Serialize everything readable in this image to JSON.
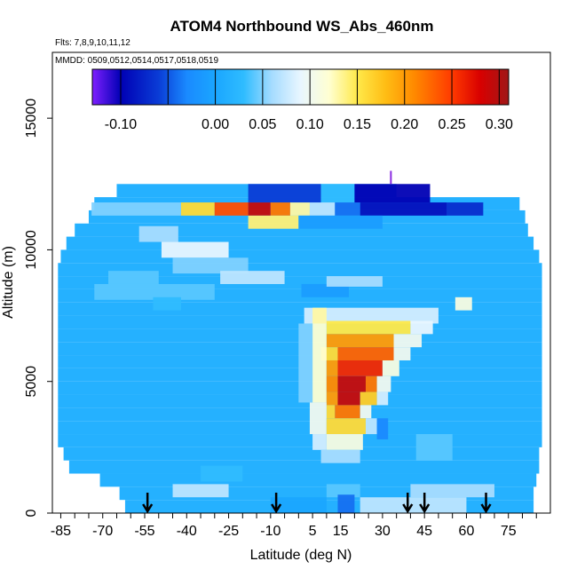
{
  "chart_data": {
    "type": "heatmap",
    "title": "ATOM4 Northbound WS_Abs_460nm",
    "flights_note": "Flts: 7,8,9,10,11,12",
    "dates_note": "MMDD: 0509,0512,0514,0517,0518,0519",
    "xlabel": "Latitude (deg N)",
    "ylabel": "Altitude (m)",
    "xlim": [
      -88,
      90
    ],
    "ylim": [
      0,
      17500
    ],
    "x_ticks": [
      -85,
      -70,
      -55,
      -40,
      -25,
      -10,
      5,
      15,
      30,
      45,
      60,
      75
    ],
    "x_minor_ticks": [
      -80,
      -75,
      -65,
      -60,
      -50,
      -45,
      -35,
      -30,
      -20,
      -15,
      -5,
      0,
      10,
      20,
      25,
      35,
      40,
      50,
      55,
      65,
      70,
      80,
      85
    ],
    "y_ticks": [
      0,
      5000,
      10000,
      15000
    ],
    "colorbar": {
      "range": [
        -0.13,
        0.31
      ],
      "tick_labels": [
        "-0.10",
        "0.00",
        "0.05",
        "0.10",
        "0.15",
        "0.20",
        "0.25",
        "0.30"
      ],
      "tick_values": [
        -0.1,
        0.0,
        0.05,
        0.1,
        0.15,
        0.2,
        0.25,
        0.3
      ],
      "stops": [
        {
          "v": -0.13,
          "c": "#7f1fff"
        },
        {
          "v": -0.1,
          "c": "#0000b4"
        },
        {
          "v": -0.06,
          "c": "#0a3cd6"
        },
        {
          "v": -0.03,
          "c": "#1a8aff"
        },
        {
          "v": 0.0,
          "c": "#1aa6ff"
        },
        {
          "v": 0.03,
          "c": "#2fbcff"
        },
        {
          "v": 0.06,
          "c": "#a6dcff"
        },
        {
          "v": 0.09,
          "c": "#e8f6ff"
        },
        {
          "v": 0.12,
          "c": "#ffffd2"
        },
        {
          "v": 0.15,
          "c": "#ffe94a"
        },
        {
          "v": 0.18,
          "c": "#ffbd14"
        },
        {
          "v": 0.21,
          "c": "#ff8a00"
        },
        {
          "v": 0.25,
          "c": "#ff3a00"
        },
        {
          "v": 0.28,
          "c": "#d80000"
        },
        {
          "v": 0.31,
          "c": "#a01818"
        }
      ]
    },
    "background_value": 0.015,
    "field_rows": [
      {
        "alt": 12000,
        "lat_min": -65,
        "lat_max": 35,
        "v": 0.015
      },
      {
        "alt": 11500,
        "lat_min": -73,
        "lat_max": 79,
        "v": 0.015
      },
      {
        "alt": 11000,
        "lat_min": -75,
        "lat_max": 81,
        "v": 0.015
      },
      {
        "alt": 10500,
        "lat_min": -80,
        "lat_max": 82,
        "v": 0.015
      },
      {
        "alt": 10000,
        "lat_min": -83,
        "lat_max": 84,
        "v": 0.015
      },
      {
        "alt": 9500,
        "lat_min": -85,
        "lat_max": 86,
        "v": 0.015
      },
      {
        "alt": 9000,
        "lat_min": -86,
        "lat_max": 87,
        "v": 0.015
      },
      {
        "alt": 2500,
        "lat_min": -86,
        "lat_max": 87,
        "v": 0.015
      },
      {
        "alt": 2000,
        "lat_min": -84,
        "lat_max": 86,
        "v": 0.015
      },
      {
        "alt": 1500,
        "lat_min": -82,
        "lat_max": 86,
        "v": 0.015
      },
      {
        "alt": 1000,
        "lat_min": -71,
        "lat_max": 85,
        "v": 0.015
      },
      {
        "alt": 500,
        "lat_min": -64,
        "lat_max": 84,
        "v": 0.015
      },
      {
        "alt": 0,
        "lat_min": -62,
        "lat_max": 84,
        "v": 0.015
      }
    ],
    "features": [
      {
        "lat": [
          -74,
          -42
        ],
        "alt": [
          11300,
          11800
        ],
        "v": 0.05
      },
      {
        "lat": [
          -42,
          -30
        ],
        "alt": [
          11300,
          11800
        ],
        "v": 0.16
      },
      {
        "lat": [
          -30,
          -18
        ],
        "alt": [
          11300,
          11800
        ],
        "v": 0.24
      },
      {
        "lat": [
          -18,
          -10
        ],
        "alt": [
          11300,
          11800
        ],
        "v": 0.29
      },
      {
        "lat": [
          -10,
          -3
        ],
        "alt": [
          11300,
          11800
        ],
        "v": 0.22
      },
      {
        "lat": [
          -3,
          4
        ],
        "alt": [
          11300,
          11800
        ],
        "v": 0.13
      },
      {
        "lat": [
          4,
          13
        ],
        "alt": [
          11300,
          11800
        ],
        "v": 0.07
      },
      {
        "lat": [
          13,
          22
        ],
        "alt": [
          11300,
          11800
        ],
        "v": -0.04
      },
      {
        "lat": [
          22,
          53
        ],
        "alt": [
          11300,
          11800
        ],
        "v": -0.09
      },
      {
        "lat": [
          53,
          66
        ],
        "alt": [
          11300,
          11800
        ],
        "v": -0.07
      },
      {
        "lat": [
          -18,
          8
        ],
        "alt": [
          11800,
          12500
        ],
        "v": -0.06
      },
      {
        "lat": [
          8,
          20
        ],
        "alt": [
          11800,
          12500
        ],
        "v": 0.03
      },
      {
        "lat": [
          20,
          47
        ],
        "alt": [
          11800,
          12500
        ],
        "v": -0.1
      },
      {
        "lat": [
          -18,
          0
        ],
        "alt": [
          10800,
          11300
        ],
        "v": 0.14
      },
      {
        "lat": [
          0,
          30
        ],
        "alt": [
          10800,
          11300
        ],
        "v": -0.01
      },
      {
        "lat": [
          -57,
          -43
        ],
        "alt": [
          10300,
          10900
        ],
        "v": 0.06
      },
      {
        "lat": [
          -49,
          -25
        ],
        "alt": [
          9700,
          10300
        ],
        "v": 0.09
      },
      {
        "lat": [
          -45,
          -18
        ],
        "alt": [
          9100,
          9700
        ],
        "v": 0.05
      },
      {
        "lat": [
          -28,
          -5
        ],
        "alt": [
          8700,
          9200
        ],
        "v": 0.07
      },
      {
        "lat": [
          -68,
          -50
        ],
        "alt": [
          8700,
          9200
        ],
        "v": 0.04
      },
      {
        "lat": [
          -73,
          -30
        ],
        "alt": [
          8100,
          8700
        ],
        "v": 0.04
      },
      {
        "lat": [
          -52,
          -42
        ],
        "alt": [
          7700,
          8200
        ],
        "v": 0.03
      },
      {
        "lat": [
          1,
          18
        ],
        "alt": [
          8200,
          8700
        ],
        "v": -0.01
      },
      {
        "lat": [
          10,
          30
        ],
        "alt": [
          8600,
          9000
        ],
        "v": 0.06
      },
      {
        "lat": [
          56,
          62
        ],
        "alt": [
          7700,
          8200
        ],
        "v": 0.11
      },
      {
        "lat": [
          2,
          50
        ],
        "alt": [
          7200,
          7800
        ],
        "v": 0.08
      },
      {
        "lat": [
          5,
          10
        ],
        "alt": [
          7200,
          7800
        ],
        "v": 0.13
      },
      {
        "lat": [
          10,
          40
        ],
        "alt": [
          6800,
          7300
        ],
        "v": 0.15
      },
      {
        "lat": [
          40,
          48
        ],
        "alt": [
          6800,
          7300
        ],
        "v": 0.09
      },
      {
        "lat": [
          10,
          34
        ],
        "alt": [
          6300,
          6800
        ],
        "v": 0.2
      },
      {
        "lat": [
          34,
          44
        ],
        "alt": [
          6300,
          6800
        ],
        "v": 0.1
      },
      {
        "lat": [
          8,
          14
        ],
        "alt": [
          5800,
          6300
        ],
        "v": 0.16
      },
      {
        "lat": [
          14,
          34
        ],
        "alt": [
          5800,
          6300
        ],
        "v": 0.23
      },
      {
        "lat": [
          34,
          40
        ],
        "alt": [
          5800,
          6300
        ],
        "v": 0.1
      },
      {
        "lat": [
          0,
          5
        ],
        "alt": [
          4200,
          7200
        ],
        "v": 0.05
      },
      {
        "lat": [
          5,
          10
        ],
        "alt": [
          4200,
          7200
        ],
        "v": 0.12
      },
      {
        "lat": [
          10,
          14
        ],
        "alt": [
          5200,
          5800
        ],
        "v": 0.2
      },
      {
        "lat": [
          14,
          30
        ],
        "alt": [
          5200,
          5800
        ],
        "v": 0.26
      },
      {
        "lat": [
          30,
          36
        ],
        "alt": [
          5200,
          5800
        ],
        "v": 0.11
      },
      {
        "lat": [
          10,
          14
        ],
        "alt": [
          4600,
          5200
        ],
        "v": 0.21
      },
      {
        "lat": [
          14,
          24
        ],
        "alt": [
          4600,
          5200
        ],
        "v": 0.29
      },
      {
        "lat": [
          24,
          28
        ],
        "alt": [
          4600,
          5200
        ],
        "v": 0.22
      },
      {
        "lat": [
          28,
          33
        ],
        "alt": [
          4600,
          5200
        ],
        "v": 0.1
      },
      {
        "lat": [
          10,
          14
        ],
        "alt": [
          4100,
          4600
        ],
        "v": 0.2
      },
      {
        "lat": [
          14,
          22
        ],
        "alt": [
          4100,
          4600
        ],
        "v": 0.29
      },
      {
        "lat": [
          22,
          28
        ],
        "alt": [
          4100,
          4600
        ],
        "v": 0.17
      },
      {
        "lat": [
          28,
          32
        ],
        "alt": [
          4100,
          4600
        ],
        "v": 0.08
      },
      {
        "lat": [
          10,
          13
        ],
        "alt": [
          3600,
          4100
        ],
        "v": 0.16
      },
      {
        "lat": [
          13,
          22
        ],
        "alt": [
          3600,
          4100
        ],
        "v": 0.22
      },
      {
        "lat": [
          22,
          26
        ],
        "alt": [
          3600,
          4100
        ],
        "v": 0.1
      },
      {
        "lat": [
          4,
          10
        ],
        "alt": [
          3000,
          4200
        ],
        "v": 0.1
      },
      {
        "lat": [
          10,
          24
        ],
        "alt": [
          3000,
          3600
        ],
        "v": 0.16
      },
      {
        "lat": [
          24,
          28
        ],
        "alt": [
          3000,
          3600
        ],
        "v": 0.07
      },
      {
        "lat": [
          5,
          10
        ],
        "alt": [
          2400,
          3000
        ],
        "v": 0.08
      },
      {
        "lat": [
          10,
          23
        ],
        "alt": [
          2400,
          3000
        ],
        "v": 0.11
      },
      {
        "lat": [
          8,
          22
        ],
        "alt": [
          1900,
          2400
        ],
        "v": 0.06
      },
      {
        "lat": [
          28,
          32
        ],
        "alt": [
          2800,
          3600
        ],
        "v": -0.03
      },
      {
        "lat": [
          42,
          55
        ],
        "alt": [
          2000,
          3000
        ],
        "v": 0.04
      },
      {
        "lat": [
          -35,
          -20
        ],
        "alt": [
          1200,
          1800
        ],
        "v": 0.03
      },
      {
        "lat": [
          -45,
          -25
        ],
        "alt": [
          600,
          1100
        ],
        "v": 0.07
      },
      {
        "lat": [
          10,
          22
        ],
        "alt": [
          600,
          1100
        ],
        "v": 0.04
      },
      {
        "lat": [
          40,
          70
        ],
        "alt": [
          600,
          1100
        ],
        "v": 0.06
      },
      {
        "lat": [
          14,
          20
        ],
        "alt": [
          0,
          700
        ],
        "v": -0.04
      },
      {
        "lat": [
          22,
          60
        ],
        "alt": [
          0,
          600
        ],
        "v": 0.07
      },
      {
        "lat": [
          -10,
          10
        ],
        "alt": [
          0,
          600
        ],
        "v": 0.0
      }
    ],
    "flight_markers_lat": [
      -54,
      -8,
      39,
      45,
      67
    ],
    "purple_tick": {
      "lat": 33,
      "alt": [
        12500,
        13000
      ]
    }
  }
}
